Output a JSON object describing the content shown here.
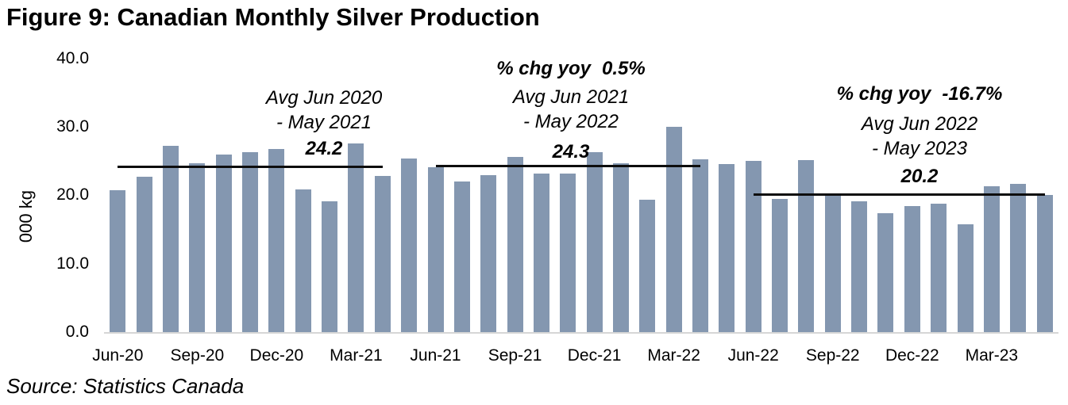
{
  "title": "Figure 9: Canadian Monthly Silver Production",
  "source": "Source: Statistics Canada",
  "chart_data": {
    "type": "bar",
    "title": "Figure 9: Canadian Monthly Silver Production",
    "xlabel": "",
    "ylabel": "000 kg",
    "ylim": [
      0.0,
      40.0
    ],
    "grid": false,
    "legend": false,
    "y_tick_labels": [
      "40.0",
      "30.0",
      "20.0",
      "10.0",
      "0.0"
    ],
    "x": [
      "Jun-20",
      "Jul-20",
      "Aug-20",
      "Sep-20",
      "Oct-20",
      "Nov-20",
      "Dec-20",
      "Jan-21",
      "Feb-21",
      "Mar-21",
      "Apr-21",
      "May-21",
      "Jun-21",
      "Jul-21",
      "Aug-21",
      "Sep-21",
      "Oct-21",
      "Nov-21",
      "Dec-21",
      "Jan-22",
      "Feb-22",
      "Mar-22",
      "Apr-22",
      "May-22",
      "Jun-22",
      "Jul-22",
      "Aug-22",
      "Sep-22",
      "Oct-22",
      "Nov-22",
      "Dec-22",
      "Jan-23",
      "Feb-23",
      "Mar-23",
      "Apr-23",
      "May-23"
    ],
    "values": [
      20.7,
      22.7,
      27.2,
      24.7,
      26.0,
      26.3,
      26.8,
      20.9,
      19.1,
      27.6,
      22.8,
      25.4,
      24.1,
      22.0,
      23.0,
      25.6,
      23.2,
      23.2,
      26.3,
      24.7,
      19.4,
      30.0,
      25.3,
      24.6,
      25.0,
      19.5,
      25.1,
      20.3,
      19.1,
      17.4,
      18.4,
      18.8,
      15.8,
      21.3,
      21.7,
      20.1
    ],
    "x_tick_labels": [
      "Jun-20",
      "Sep-20",
      "Dec-20",
      "Mar-21",
      "Jun-21",
      "Sep-21",
      "Dec-21",
      "Mar-22",
      "Jun-22",
      "Sep-22",
      "Dec-22",
      "Mar-23"
    ],
    "annotations": [
      {
        "pct_prefix": "",
        "pct_value": "",
        "period_lines": [
          "Avg Jun 2020",
          "- May 2021"
        ],
        "avg_label": "24.2",
        "avg_value": 24.2,
        "span": [
          0,
          10
        ]
      },
      {
        "pct_prefix": "% chg yoy",
        "pct_value": "0.5%",
        "period_lines": [
          "Avg Jun 2021",
          "- May 2022"
        ],
        "avg_label": "24.3",
        "avg_value": 24.3,
        "span": [
          12,
          22
        ]
      },
      {
        "pct_prefix": "% chg yoy",
        "pct_value": "-16.7%",
        "period_lines": [
          "Avg Jun 2022",
          "- May 2023"
        ],
        "avg_label": "20.2",
        "avg_value": 20.2,
        "span": [
          24,
          35
        ]
      }
    ],
    "colors": {
      "bar": "#8497b0",
      "avg_line": "#0d0d0d",
      "axis_line": "#d6d6d6",
      "text": "#000000"
    }
  }
}
